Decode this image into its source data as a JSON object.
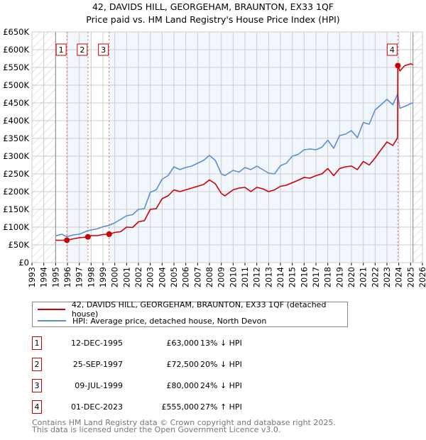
{
  "title_line1": "42, DAVIDS HILL, GEORGEHAM, BRAUNTON, EX33 1QF",
  "title_line2": "Price paid vs. HM Land Registry's House Price Index (HPI)",
  "legend": {
    "property": "42, DAVIDS HILL, GEORGEHAM, BRAUNTON, EX33 1QF (detached house)",
    "hpi": "HPI: Average price, detached house, North Devon"
  },
  "colors": {
    "property": "#cc0000",
    "hpi": "#5b8fd4",
    "shade": "#f2f6fd",
    "grid": "#cccccc"
  },
  "sales": [
    {
      "num": "1",
      "date": "12-DEC-1995",
      "price": "£63,000",
      "hpi": "13% ↓ HPI",
      "x": 1995.95,
      "y": 63
    },
    {
      "num": "2",
      "date": "25-SEP-1997",
      "price": "£72,500",
      "hpi": "20% ↓ HPI",
      "x": 1997.73,
      "y": 72.5
    },
    {
      "num": "3",
      "date": "09-JUL-1999",
      "price": "£80,000",
      "hpi": "24% ↓ HPI",
      "x": 1999.52,
      "y": 80
    },
    {
      "num": "4",
      "date": "01-DEC-2023",
      "price": "£555,000",
      "hpi": "27% ↑ HPI",
      "x": 2023.92,
      "y": 555
    }
  ],
  "footer": {
    "line1": "Contains HM Land Registry data © Crown copyright and database right 2025.",
    "line2": "This data is licensed under the Open Government Licence v3.0."
  },
  "chart_data": {
    "type": "line",
    "xlim": [
      1993,
      2026
    ],
    "ylim": [
      0,
      650
    ],
    "y_unit": "£K",
    "x_ticks": [
      "1993",
      "1994",
      "1995",
      "1996",
      "1997",
      "1998",
      "1999",
      "2000",
      "2001",
      "2002",
      "2003",
      "2004",
      "2005",
      "2006",
      "2007",
      "2008",
      "2009",
      "2010",
      "2011",
      "2012",
      "2013",
      "2014",
      "2015",
      "2016",
      "2017",
      "2018",
      "2019",
      "2020",
      "2021",
      "2022",
      "2023",
      "2024",
      "2025",
      "2026"
    ],
    "y_ticks": [
      {
        "v": 0,
        "label": "£0"
      },
      {
        "v": 50,
        "label": "£50K"
      },
      {
        "v": 100,
        "label": "£100K"
      },
      {
        "v": 150,
        "label": "£150K"
      },
      {
        "v": 200,
        "label": "£200K"
      },
      {
        "v": 250,
        "label": "£250K"
      },
      {
        "v": 300,
        "label": "£300K"
      },
      {
        "v": 350,
        "label": "£350K"
      },
      {
        "v": 400,
        "label": "£400K"
      },
      {
        "v": 450,
        "label": "£450K"
      },
      {
        "v": 500,
        "label": "£500K"
      },
      {
        "v": 550,
        "label": "£550K"
      },
      {
        "v": 600,
        "label": "£600K"
      },
      {
        "v": 650,
        "label": "£650K"
      }
    ],
    "data_range": [
      1995,
      2025.2
    ],
    "series": [
      {
        "name": "42, DAVIDS HILL, GEORGEHAM, BRAUNTON, EX33 1QF (detached house)",
        "color": "#cc0000",
        "x": [
          1995,
          1995.95,
          1996.5,
          1997,
          1997.73,
          1998,
          1998.5,
          1999,
          1999.52,
          2000,
          2000.5,
          2001,
          2001.5,
          2002,
          2002.5,
          2003,
          2003.5,
          2004,
          2004.5,
          2005,
          2005.5,
          2006,
          2006.5,
          2007,
          2007.5,
          2008,
          2008.5,
          2009,
          2009.3,
          2010,
          2010.5,
          2011,
          2011.5,
          2012,
          2012.5,
          2013,
          2013.5,
          2014,
          2014.5,
          2015,
          2015.5,
          2016,
          2016.5,
          2017,
          2017.5,
          2018,
          2018.5,
          2019,
          2019.5,
          2020,
          2020.5,
          2021,
          2021.5,
          2022,
          2022.5,
          2023,
          2023.5,
          2023.9,
          2023.92,
          2024.1,
          2024.5,
          2025,
          2025.2
        ],
        "y": [
          63,
          63,
          67,
          70,
          72.5,
          76,
          76,
          79,
          80,
          85,
          87,
          100,
          99,
          115,
          118,
          150,
          152,
          180,
          188,
          205,
          200,
          205,
          210,
          215,
          220,
          233,
          222,
          195,
          188,
          205,
          210,
          212,
          200,
          212,
          208,
          200,
          205,
          215,
          218,
          225,
          232,
          240,
          238,
          245,
          250,
          265,
          245,
          265,
          270,
          272,
          262,
          285,
          275,
          295,
          318,
          340,
          330,
          352,
          555,
          540,
          555,
          560,
          558
        ]
      },
      {
        "name": "HPI: Average price, detached house, North Devon",
        "color": "#5b8fd4",
        "x": [
          1995,
          1995.5,
          1995.95,
          1996.5,
          1997,
          1997.73,
          1998,
          1998.5,
          1999,
          1999.52,
          2000,
          2000.5,
          2001,
          2001.5,
          2002,
          2002.5,
          2003,
          2003.5,
          2004,
          2004.5,
          2005,
          2005.5,
          2006,
          2006.5,
          2007,
          2007.5,
          2008,
          2008.5,
          2009,
          2009.3,
          2010,
          2010.5,
          2011,
          2011.5,
          2012,
          2012.5,
          2013,
          2013.5,
          2014,
          2014.5,
          2015,
          2015.5,
          2016,
          2016.5,
          2017,
          2017.5,
          2018,
          2018.5,
          2019,
          2019.5,
          2020,
          2020.5,
          2021,
          2021.5,
          2022,
          2022.5,
          2023,
          2023.5,
          2023.9,
          2024.1,
          2024.5,
          2025,
          2025.2
        ],
        "y": [
          75,
          80,
          73,
          78,
          80,
          90,
          92,
          95,
          101,
          105,
          112,
          122,
          132,
          135,
          150,
          152,
          198,
          205,
          235,
          245,
          270,
          262,
          268,
          272,
          280,
          288,
          302,
          288,
          250,
          245,
          260,
          255,
          268,
          262,
          272,
          262,
          252,
          250,
          273,
          280,
          300,
          305,
          318,
          320,
          318,
          325,
          345,
          322,
          358,
          362,
          372,
          352,
          395,
          390,
          430,
          445,
          460,
          445,
          475,
          435,
          440,
          448,
          450
        ]
      }
    ]
  }
}
